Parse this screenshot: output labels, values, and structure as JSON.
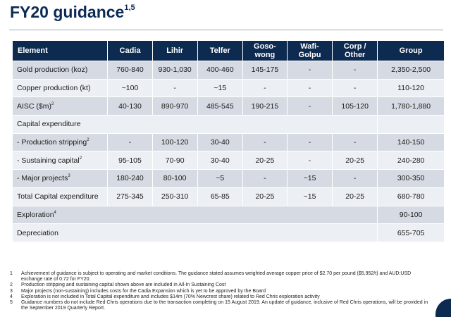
{
  "title": {
    "text": "FY20 guidance",
    "sup": "1,5"
  },
  "table": {
    "headers": [
      {
        "line1": "Element",
        "line2": ""
      },
      {
        "line1": "Cadia",
        "line2": ""
      },
      {
        "line1": "Lihir",
        "line2": ""
      },
      {
        "line1": "Telfer",
        "line2": ""
      },
      {
        "line1": "Goso-",
        "line2": "wong"
      },
      {
        "line1": "Wafi-",
        "line2": "Golpu"
      },
      {
        "line1": "Corp /",
        "line2": "Other"
      },
      {
        "line1": "Group",
        "line2": ""
      }
    ],
    "rows": [
      {
        "label": "Gold production (koz)",
        "sup": "",
        "cells": [
          "760-840",
          "930-1,030",
          "400-460",
          "145-175",
          "-",
          "-",
          "2,350-2,500"
        ]
      },
      {
        "label": "Copper production (kt)",
        "sup": "",
        "cells": [
          "~100",
          "-",
          "~15",
          "-",
          "-",
          "-",
          "110-120"
        ]
      },
      {
        "label": "AISC ($m)",
        "sup": "2",
        "cells": [
          "40-130",
          "890-970",
          "485-545",
          "190-215",
          "-",
          "105-120",
          "1,780-1,880"
        ]
      },
      {
        "label": "Capital expenditure",
        "sup": "",
        "cells": []
      },
      {
        "label": "- Production stripping",
        "sup": "2",
        "cells": [
          "-",
          "100-120",
          "30-40",
          "-",
          "-",
          "-",
          "140-150"
        ]
      },
      {
        "label": "- Sustaining capital",
        "sup": "2",
        "cells": [
          "95-105",
          "70-90",
          "30-40",
          "20-25",
          "-",
          "20-25",
          "240-280"
        ]
      },
      {
        "label": "- Major projects",
        "sup": "3",
        "cells": [
          "180-240",
          "80-100",
          "~5",
          "-",
          "~15",
          "-",
          "300-350"
        ]
      },
      {
        "label": "Total Capital expenditure",
        "sup": "",
        "cells": [
          "275-345",
          "250-310",
          "65-85",
          "20-25",
          "~15",
          "20-25",
          "680-780"
        ]
      },
      {
        "label": "Exploration",
        "sup": "4",
        "group": "90-100"
      },
      {
        "label": "Depreciation",
        "sup": "",
        "group": "655-705"
      }
    ]
  },
  "notes": [
    {
      "n": "1",
      "text": "Achievement of guidance is subject to operating and market conditions. The guidance stated assumes weighted average copper price of $2.70 per pound ($5,952/t) and AUD:USD exchange rate of 0.72 for FY20."
    },
    {
      "n": "2",
      "text": "Production stripping and sustaining capital shown above are included in All-In Sustaining Cost"
    },
    {
      "n": "3",
      "text": "Major projects (non-sustaining) includes costs for the Cadia Expansion which is yet to be approved by the Board"
    },
    {
      "n": "4",
      "text": "Exploration is not included in Total Capital expenditure and includes $14m (70% Newcrest share) related to Red Chris exploration activity"
    },
    {
      "n": "5",
      "text": "Guidance numbers do not include Red Chris operations due to the transaction completing on 15 August 2019. An update of guidance, inclusive of Red Chris operations, will be provided in the September 2019 Quarterly Report."
    }
  ]
}
